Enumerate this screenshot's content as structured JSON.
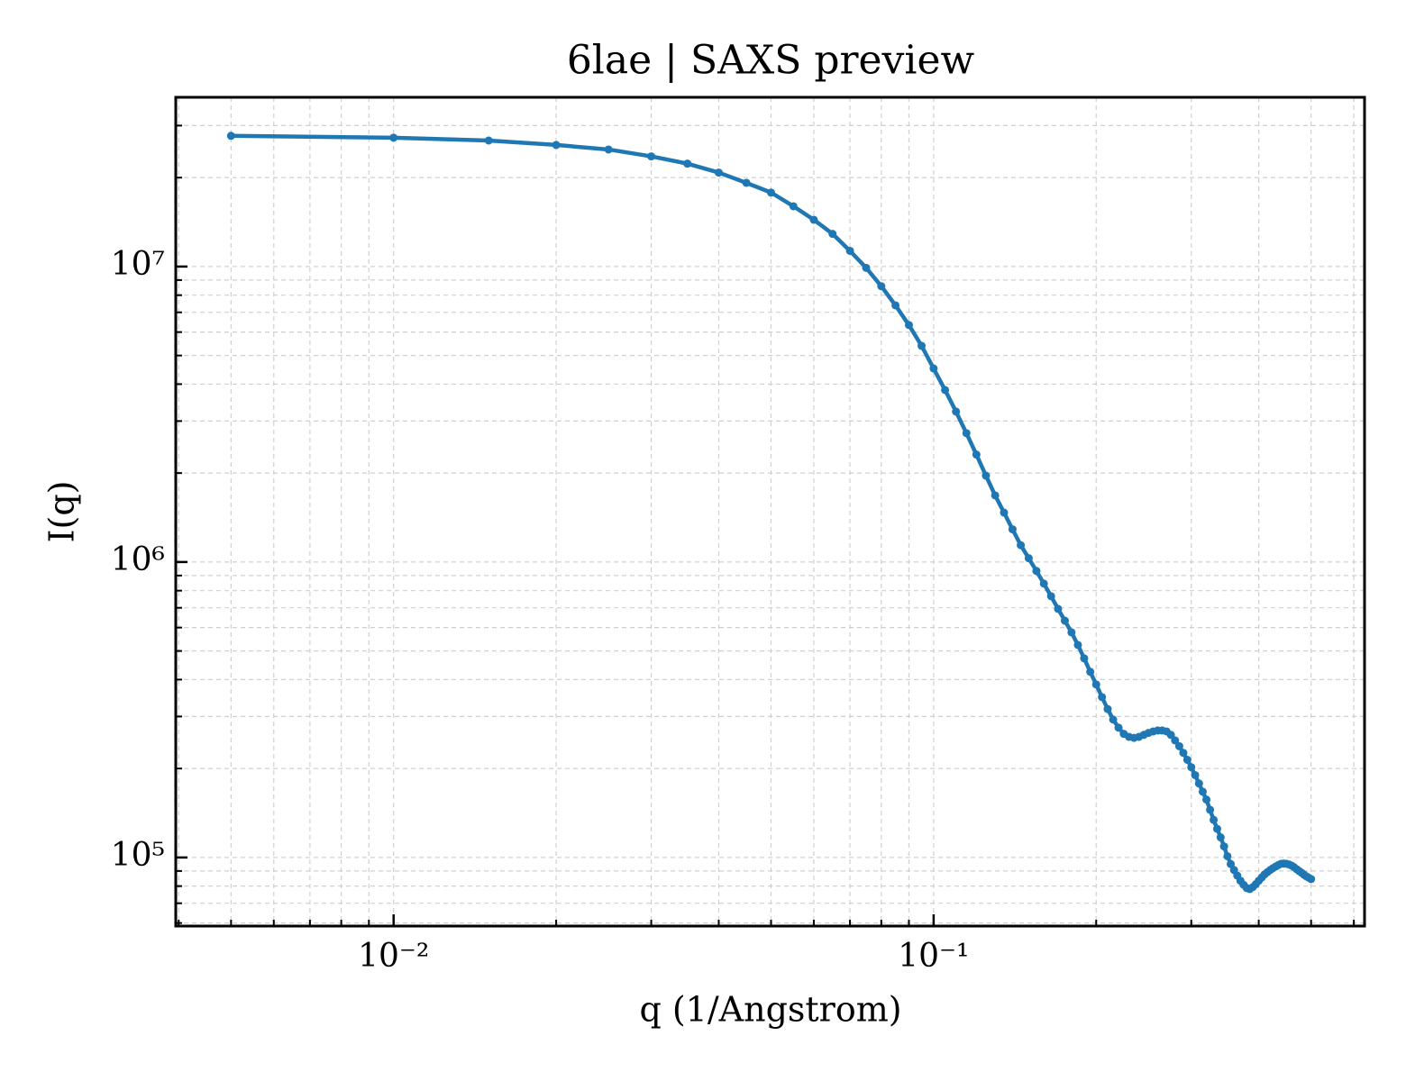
{
  "chart_data": {
    "type": "line",
    "title": "6lae | SAXS preview",
    "xlabel": "q (1/Angstrom)",
    "ylabel": "I(q)",
    "x": [
      0.005,
      0.01,
      0.015,
      0.02,
      0.025,
      0.03,
      0.035,
      0.04,
      0.045,
      0.05,
      0.055,
      0.06,
      0.065,
      0.07,
      0.075,
      0.08,
      0.085,
      0.09,
      0.095,
      0.1,
      0.105,
      0.11,
      0.115,
      0.12,
      0.125,
      0.13,
      0.135,
      0.14,
      0.145,
      0.15,
      0.155,
      0.16,
      0.165,
      0.17,
      0.175,
      0.18,
      0.185,
      0.19,
      0.195,
      0.2,
      0.205,
      0.21,
      0.215,
      0.22,
      0.225,
      0.23,
      0.235,
      0.24,
      0.245,
      0.25,
      0.255,
      0.26,
      0.265,
      0.27,
      0.275,
      0.28,
      0.285,
      0.29,
      0.295,
      0.3,
      0.305,
      0.31,
      0.315,
      0.32,
      0.325,
      0.33,
      0.335,
      0.34,
      0.345,
      0.35,
      0.355,
      0.36,
      0.365,
      0.37,
      0.375,
      0.38,
      0.385,
      0.39,
      0.395,
      0.4,
      0.405,
      0.41,
      0.415,
      0.42,
      0.425,
      0.43,
      0.435,
      0.44,
      0.445,
      0.45,
      0.455,
      0.46,
      0.465,
      0.47,
      0.475,
      0.48,
      0.485,
      0.49,
      0.495,
      0.5
    ],
    "values": [
      27700000,
      27300000,
      26700000,
      25800000,
      24900000,
      23600000,
      22300000,
      20800000,
      19200000,
      17800000,
      16000000,
      14400000,
      12900000,
      11300000,
      9900000,
      8580000,
      7390000,
      6340000,
      5390000,
      4520000,
      3820000,
      3230000,
      2730000,
      2310000,
      1960000,
      1680000,
      1470000,
      1290000,
      1140000,
      1030000,
      933000,
      845000,
      766000,
      694000,
      633000,
      578000,
      524000,
      472000,
      425000,
      385000,
      349000,
      318000,
      293000,
      275000,
      262000,
      256000,
      254000,
      256000,
      260000,
      264000,
      267000,
      269000,
      269000,
      267000,
      260000,
      249000,
      238000,
      226000,
      214000,
      202000,
      190000,
      178000,
      167000,
      157000,
      145000,
      134000,
      125000,
      117000,
      109000,
      101000,
      95000,
      90700,
      86800,
      83400,
      80800,
      78800,
      78200,
      79400,
      81200,
      83400,
      85500,
      87600,
      89200,
      90700,
      92000,
      93200,
      94300,
      95200,
      95400,
      95200,
      94700,
      93900,
      92700,
      91300,
      90000,
      88800,
      87500,
      86300,
      85400,
      84500
    ],
    "color": "#1f77b4",
    "xscale": "log",
    "yscale": "log",
    "grid": true,
    "xlim": [
      0.00395,
      0.628
    ],
    "ylim": [
      58600,
      37400000
    ],
    "xticks": [
      {
        "value": 0.01,
        "label": "10⁻²"
      },
      {
        "value": 0.1,
        "label": "10⁻¹"
      }
    ],
    "yticks": [
      {
        "value": 100000,
        "label": "10⁵"
      },
      {
        "value": 1000000,
        "label": "10⁶"
      },
      {
        "value": 10000000,
        "label": "10⁷"
      }
    ],
    "xminor_ticks": [
      0.004,
      0.005,
      0.006,
      0.007,
      0.008,
      0.009,
      0.02,
      0.03,
      0.04,
      0.05,
      0.06,
      0.07,
      0.08,
      0.09,
      0.2,
      0.3,
      0.4,
      0.5,
      0.6
    ],
    "yminor_ticks": [
      60000,
      70000,
      80000,
      90000,
      200000,
      300000,
      400000,
      500000,
      600000,
      700000,
      800000,
      900000,
      2000000,
      3000000,
      4000000,
      5000000,
      6000000,
      7000000,
      8000000,
      9000000,
      20000000,
      30000000
    ]
  }
}
